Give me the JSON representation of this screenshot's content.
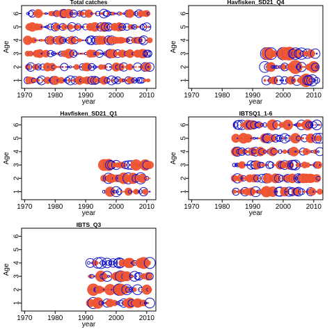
{
  "colors": {
    "positive": "#ee5533",
    "negative": "#1111cc",
    "axis": "#000000"
  },
  "chart_data": [
    {
      "type": "scatter",
      "title": "Total catches",
      "xlabel": "year",
      "ylabel": "Age",
      "xlim": [
        1969,
        2013
      ],
      "ylim": [
        0.4,
        6.6
      ],
      "xticks": [
        1970,
        1980,
        1990,
        2000,
        2010
      ],
      "yticks": [
        1,
        2,
        3,
        4,
        5,
        6
      ],
      "x_start": 1971,
      "x_end": 2011,
      "ages": [
        1,
        2,
        3,
        4,
        5,
        6
      ],
      "max_size": 6,
      "seed": 3
    },
    {
      "type": "scatter",
      "title": "Havfisken_SD21_Q4",
      "xlabel": "year",
      "ylabel": "Age",
      "xlim": [
        1969,
        2013
      ],
      "ylim": [
        0.4,
        6.6
      ],
      "xticks": [
        1970,
        1980,
        1990,
        2000,
        2010
      ],
      "yticks": [
        1,
        2,
        3,
        4,
        5,
        6
      ],
      "x_start": 1994,
      "x_end": 2011,
      "ages": [
        1,
        2,
        3
      ],
      "max_size": 9,
      "seed": 11
    },
    {
      "type": "scatter",
      "title": "Havfisken_SD21_Q1",
      "xlabel": "year",
      "ylabel": "Age",
      "xlim": [
        1969,
        2013
      ],
      "ylim": [
        0.4,
        6.6
      ],
      "xticks": [
        1970,
        1980,
        1990,
        2000,
        2010
      ],
      "yticks": [
        1,
        2,
        3,
        4,
        5,
        6
      ],
      "x_start": 1996,
      "x_end": 2011,
      "ages": [
        1,
        2,
        3
      ],
      "max_size": 8,
      "seed": 17
    },
    {
      "type": "scatter",
      "title": "IBTSQ1_1-6",
      "xlabel": "year",
      "ylabel": "Age",
      "xlim": [
        1969,
        2013
      ],
      "ylim": [
        0.4,
        6.6
      ],
      "xticks": [
        1970,
        1980,
        1990,
        2000,
        2010
      ],
      "yticks": [
        1,
        2,
        3,
        4,
        5,
        6
      ],
      "x_start": 1984,
      "x_end": 2012,
      "ages": [
        1,
        2,
        3,
        4,
        5,
        6
      ],
      "max_size": 7,
      "seed": 23
    },
    {
      "type": "scatter",
      "title": "IBTS_Q3",
      "xlabel": "year",
      "ylabel": "Age",
      "xlim": [
        1969,
        2013
      ],
      "ylim": [
        0.4,
        6.6
      ],
      "xticks": [
        1970,
        1980,
        1990,
        2000,
        2010
      ],
      "yticks": [
        1,
        2,
        3,
        4,
        5,
        6
      ],
      "x_start": 1991,
      "x_end": 2011,
      "ages": [
        1,
        2,
        3,
        4
      ],
      "max_size": 8,
      "seed": 31
    }
  ]
}
